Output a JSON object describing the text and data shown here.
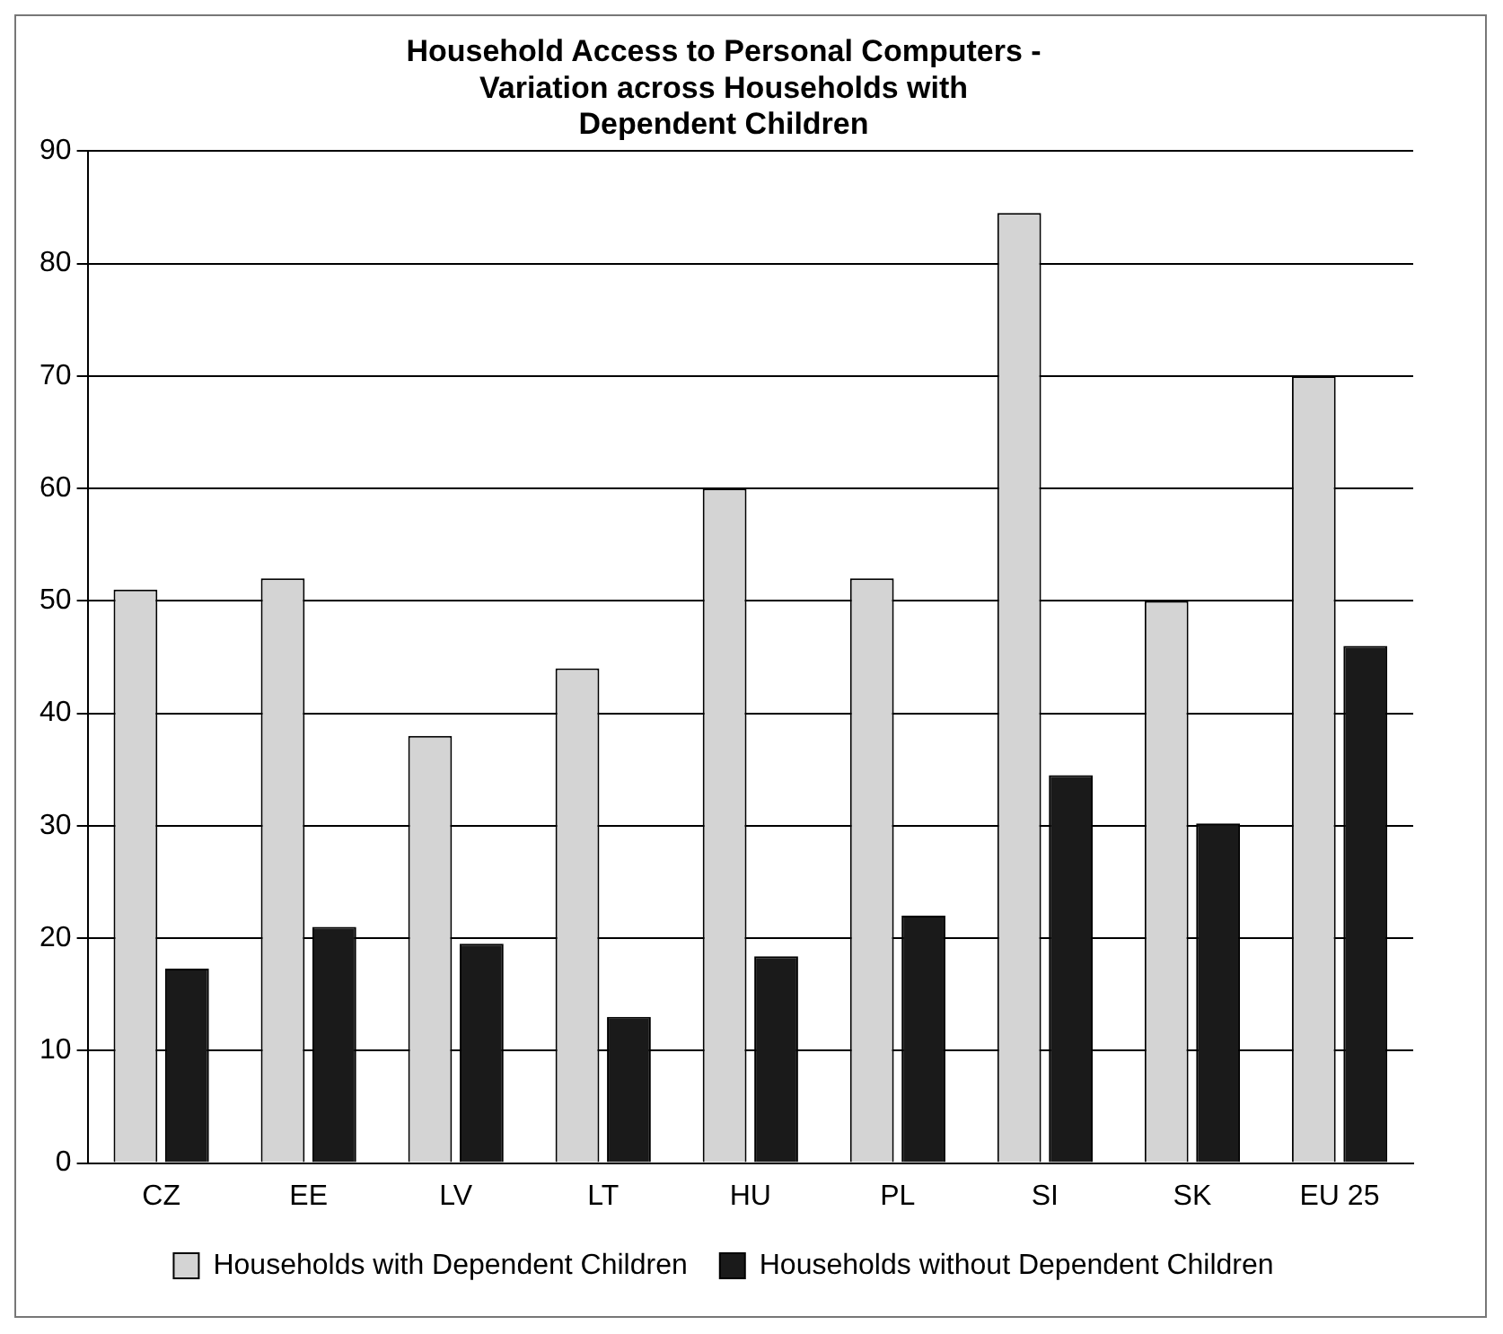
{
  "chart_data": {
    "type": "bar",
    "title": "Household Access to Personal Computers - Variation across Households with Dependent Children",
    "categories": [
      "CZ",
      "EE",
      "LV",
      "LT",
      "HU",
      "PL",
      "SI",
      "SK",
      "EU 25"
    ],
    "series": [
      {
        "name": "Households with Dependent Children",
        "color": "#d4d4d4",
        "values": [
          51,
          52,
          38,
          44,
          60,
          52,
          84.5,
          50,
          70
        ]
      },
      {
        "name": "Households without Dependent Children",
        "color": "#1a1a1a",
        "values": [
          17.3,
          21,
          19.5,
          13,
          18.4,
          22,
          34.5,
          30.2,
          46
        ]
      }
    ],
    "ylim": [
      0,
      90
    ],
    "yticks": [
      0,
      10,
      20,
      30,
      40,
      50,
      60,
      70,
      80,
      90
    ],
    "grid": "y",
    "legend": "bottom"
  }
}
